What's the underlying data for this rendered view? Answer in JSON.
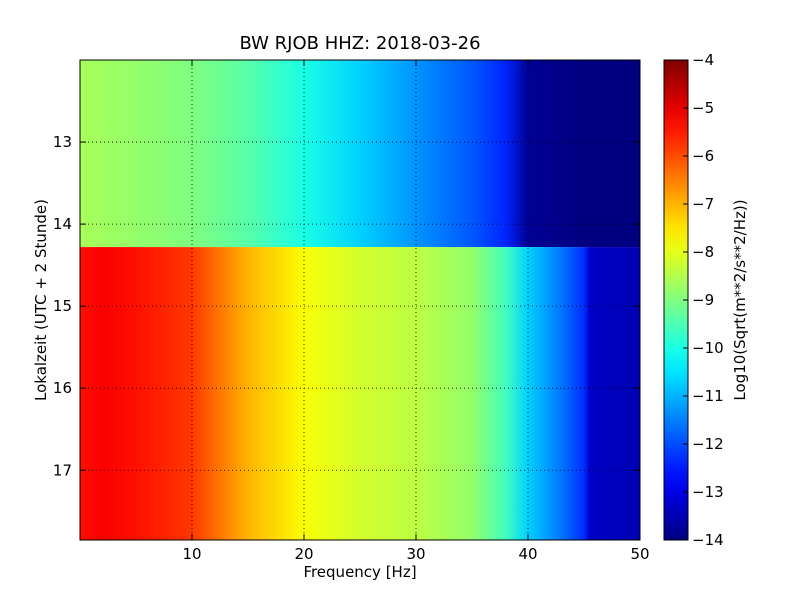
{
  "chart_data": {
    "type": "heatmap",
    "title": "BW RJOB HHZ: 2018-03-26",
    "xlabel": "Frequency [Hz]",
    "ylabel": "Lokalzeit (UTC + 2 Stunde)",
    "xlim": [
      0,
      50
    ],
    "ylim": [
      17.85,
      12.0
    ],
    "y_inverted": true,
    "x_ticks": [
      10,
      20,
      30,
      40,
      50
    ],
    "x_tick_labels": [
      "10",
      "20",
      "30",
      "40",
      "50"
    ],
    "y_ticks": [
      13,
      14,
      15,
      16,
      17
    ],
    "y_tick_labels": [
      "13",
      "14",
      "15",
      "16",
      "17"
    ],
    "grid": true,
    "colormap": "jet",
    "colorbar": {
      "label": "Log10(Sqrt(m**2/s**2/Hz))",
      "range": [
        -14,
        -4
      ],
      "ticks": [
        -4,
        -5,
        -6,
        -7,
        -8,
        -9,
        -10,
        -11,
        -12,
        -13,
        -14
      ],
      "tick_labels": [
        "−4",
        "−5",
        "−6",
        "−7",
        "−8",
        "−9",
        "−10",
        "−11",
        "−12",
        "−13",
        "−14"
      ]
    },
    "segments": [
      {
        "time_range": [
          12.0,
          14.28
        ],
        "frequency_hz": [
          0,
          5,
          10,
          15,
          20,
          25,
          30,
          35,
          38,
          40,
          45,
          50
        ],
        "log10_amplitude": [
          -8.6,
          -8.8,
          -9.0,
          -9.4,
          -10.0,
          -10.7,
          -11.3,
          -11.9,
          -12.4,
          -13.8,
          -14.0,
          -14.0
        ]
      },
      {
        "time_range": [
          14.28,
          17.85
        ],
        "frequency_hz": [
          0,
          2,
          5,
          10,
          12,
          15,
          20,
          25,
          30,
          35,
          38,
          40,
          43,
          45,
          45.5,
          50
        ],
        "log10_amplitude": [
          -5.4,
          -5.2,
          -5.4,
          -5.8,
          -6.3,
          -7.0,
          -7.8,
          -8.2,
          -8.4,
          -8.8,
          -9.6,
          -10.7,
          -11.6,
          -12.3,
          -13.3,
          -13.5
        ]
      }
    ]
  }
}
